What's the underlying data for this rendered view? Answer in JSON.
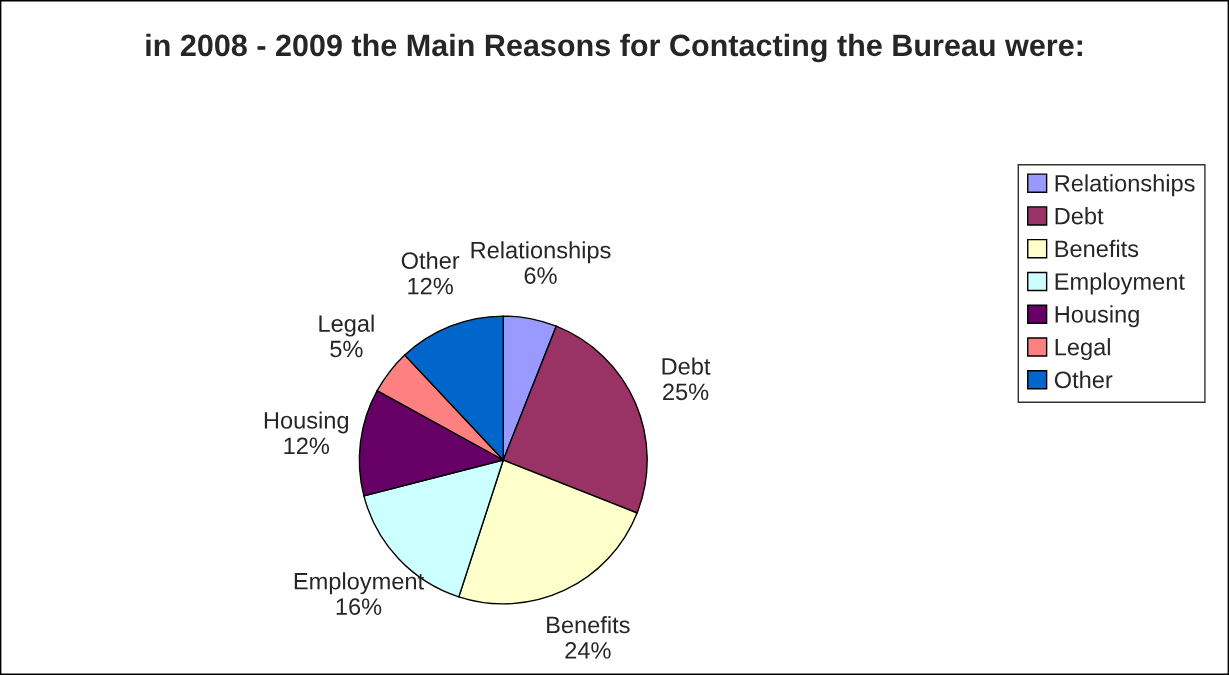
{
  "chart_data": {
    "type": "pie",
    "title": "in 2008 - 2009 the Main Reasons for Contacting the Bureau were:",
    "categories": [
      "Relationships",
      "Debt",
      "Benefits",
      "Employment",
      "Housing",
      "Legal",
      "Other"
    ],
    "values": [
      6,
      25,
      24,
      16,
      12,
      5,
      12
    ],
    "value_labels": [
      "6%",
      "25%",
      "24%",
      "16%",
      "12%",
      "5%",
      "12%"
    ],
    "colors": [
      "#9999ff",
      "#993366",
      "#ffffcc",
      "#ccffff",
      "#660066",
      "#ff8080",
      "#0066cc"
    ],
    "legend": "right"
  }
}
